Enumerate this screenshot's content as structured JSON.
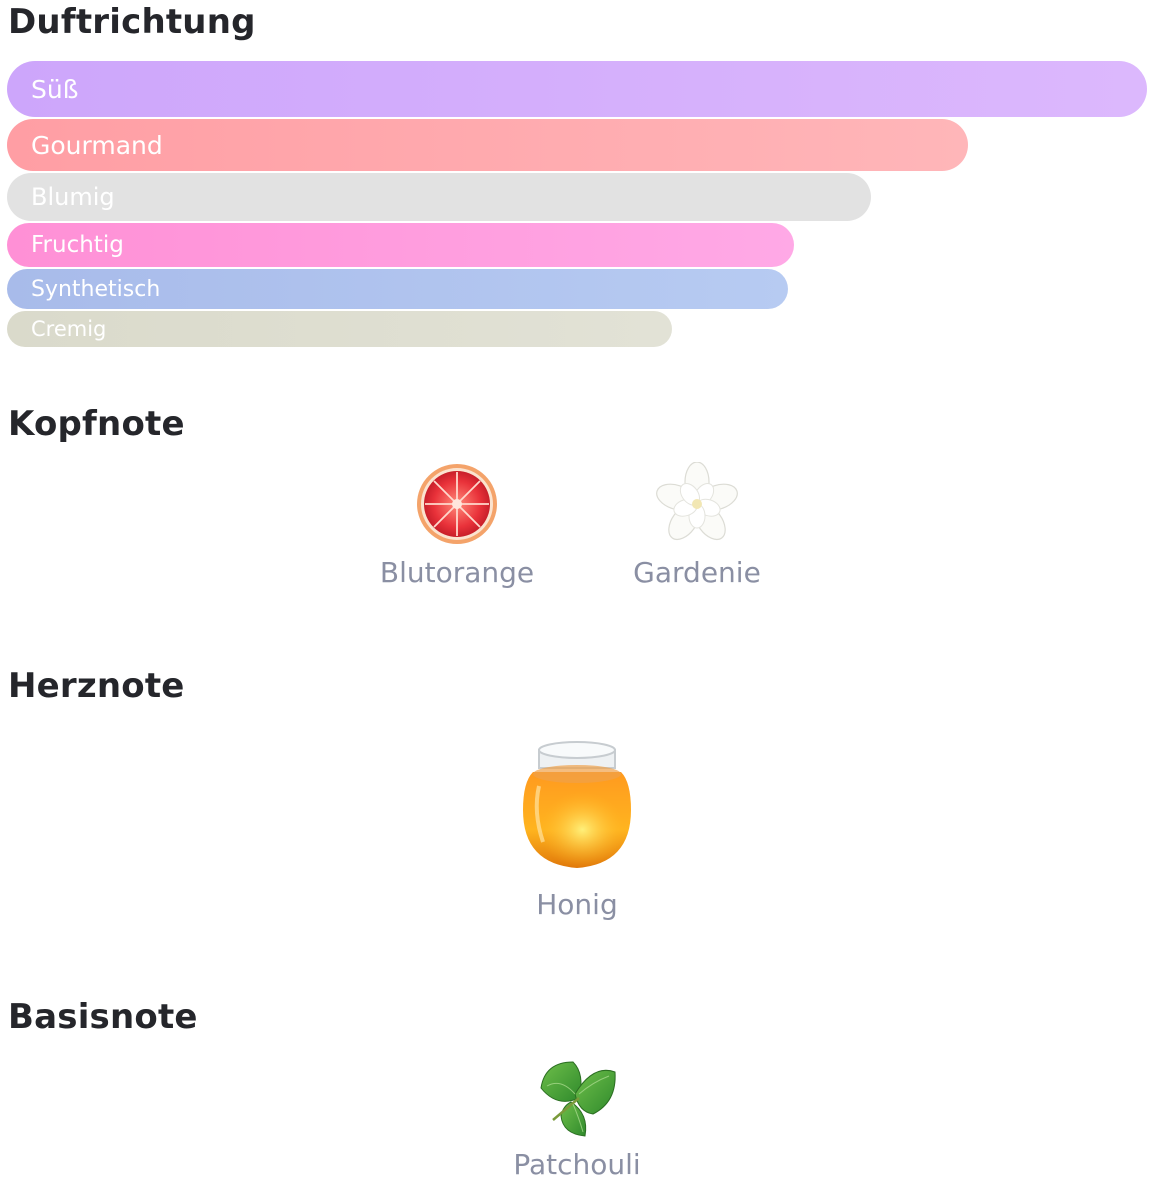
{
  "duftrichtung": {
    "title": "Duftrichtung",
    "bars": [
      {
        "label": "Süß",
        "fraction": 1.0,
        "color_start": "#cda6fb",
        "color_end": "#dcb8fd"
      },
      {
        "label": "Gourmand",
        "fraction": 0.843,
        "color_start": "#ff9ea4",
        "color_end": "#ffb6b9"
      },
      {
        "label": "Blumig",
        "fraction": 0.758,
        "color_start": "#e2e2e2",
        "color_end": "#e2e2e2"
      },
      {
        "label": "Fruchtig",
        "fraction": 0.69,
        "color_start": "#ff90d6",
        "color_end": "#ffa9e6"
      },
      {
        "label": "Synthetisch",
        "fraction": 0.685,
        "color_start": "#a8bbea",
        "color_end": "#b7cbf2"
      },
      {
        "label": "Cremig",
        "fraction": 0.583,
        "color_start": "#dadacb",
        "color_end": "#e2e2d6"
      }
    ]
  },
  "kopfnote": {
    "title": "Kopfnote",
    "notes": [
      {
        "label": "Blutorange",
        "icon": "blood-orange-icon"
      },
      {
        "label": "Gardenie",
        "icon": "gardenia-icon"
      }
    ]
  },
  "herznote": {
    "title": "Herznote",
    "notes": [
      {
        "label": "Honig",
        "icon": "honey-jar-icon"
      }
    ]
  },
  "basisnote": {
    "title": "Basisnote",
    "notes": [
      {
        "label": "Patchouli",
        "icon": "patchouli-leaf-icon"
      }
    ]
  }
}
